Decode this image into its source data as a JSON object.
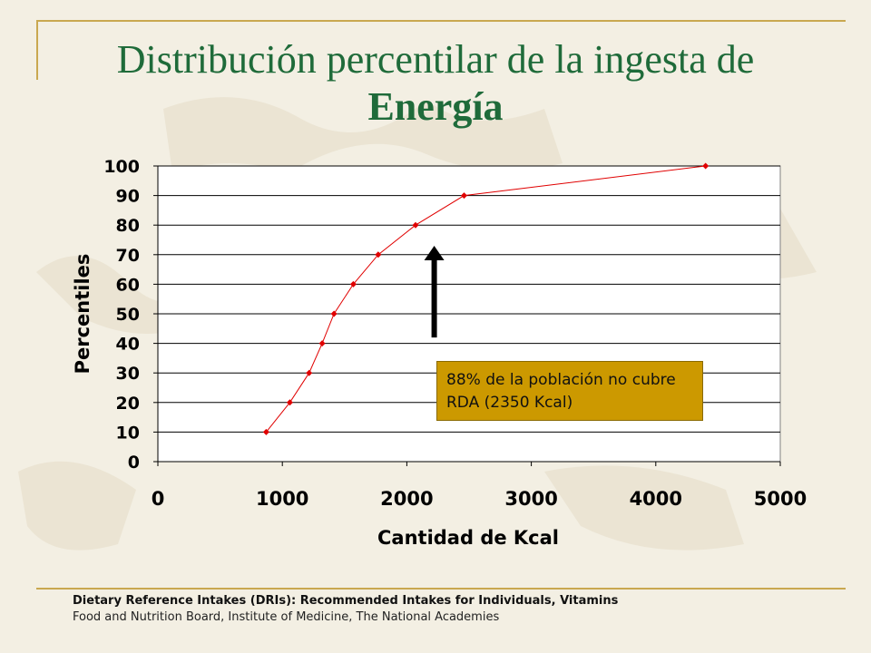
{
  "slide": {
    "title_main": "Distribución percentilar de la ingesta de",
    "title_bold": "Energía",
    "callout_text": "88% de la población no cubre RDA (2350 Kcal)",
    "footer_line1": "Dietary Reference Intakes (DRIs): Recommended Intakes for Individuals, Vitamins",
    "footer_line2": "Food and Nutrition Board, Institute of Medicine, The National Academies"
  },
  "colors": {
    "title": "#1f6b3a",
    "accent_rule": "#c9a850",
    "series": "#e00000",
    "callout_bg": "#cc9900",
    "arrow": "#000000"
  },
  "chart_data": {
    "type": "line",
    "title": "",
    "xlabel": "Cantidad de Kcal",
    "ylabel": "Percentiles",
    "xlim": [
      0,
      5000
    ],
    "ylim": [
      0,
      100
    ],
    "x_ticks": [
      "0",
      "1000",
      "2000",
      "3000",
      "4000",
      "5000"
    ],
    "y_ticks": [
      "0",
      "10",
      "20",
      "30",
      "40",
      "50",
      "60",
      "70",
      "80",
      "90",
      "100"
    ],
    "grid": "horizontal",
    "series": [
      {
        "x": [
          870,
          1060,
          1215,
          1320,
          1415,
          1570,
          1770,
          2070,
          2460,
          4400
        ],
        "y": [
          10,
          20,
          30,
          40,
          50,
          60,
          70,
          80,
          90,
          100
        ]
      }
    ],
    "annotations": [
      {
        "type": "arrow",
        "x": 2220,
        "y_from": 42,
        "y_to": 73
      }
    ]
  }
}
